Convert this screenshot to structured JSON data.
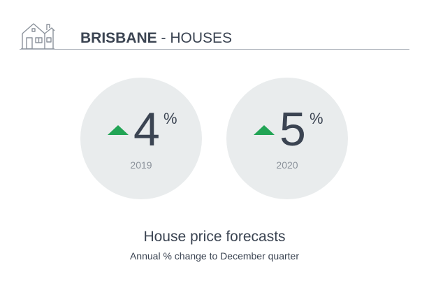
{
  "header": {
    "icon": "house-icon",
    "city": "BRISBANE",
    "separator": " - ",
    "property_type": "HOUSES"
  },
  "forecasts": [
    {
      "value": "4",
      "unit": "%",
      "year": "2019",
      "direction": "up"
    },
    {
      "value": "5",
      "unit": "%",
      "year": "2020",
      "direction": "up"
    }
  ],
  "caption": {
    "title": "House price forecasts",
    "subtitle": "Annual % change to December quarter"
  },
  "colors": {
    "text": "#3b4452",
    "muted": "#8b929b",
    "circle": "#e9eced",
    "up_arrow": "#22a455",
    "rule": "#a9afb8"
  }
}
